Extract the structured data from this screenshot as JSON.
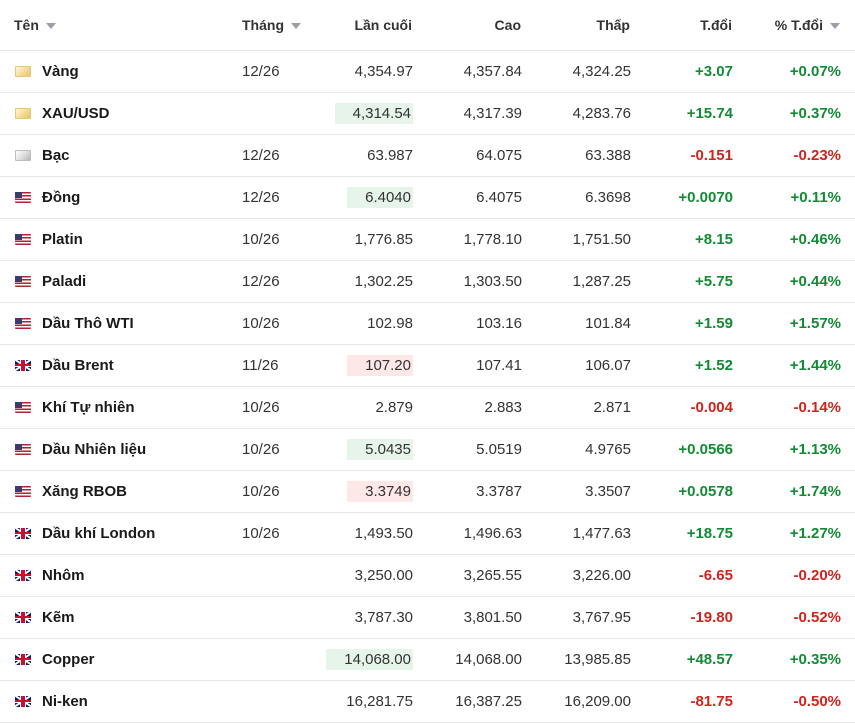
{
  "headers": {
    "name": "Tên",
    "month": "Tháng",
    "last": "Lần cuối",
    "high": "Cao",
    "low": "Thấp",
    "change": "T.đổi",
    "pct": "% T.đổi"
  },
  "colors": {
    "positive": "#138a36",
    "negative": "#d0231d",
    "highlight_up": "#e6f4ea",
    "highlight_down": "#fde7e7"
  },
  "rows": [
    {
      "flag": "gold-icon",
      "name": "Vàng",
      "month": "12/26",
      "last": "4,354.97",
      "high": "4,357.84",
      "low": "4,324.25",
      "change": "+3.07",
      "pct": "+0.07%",
      "dir": "up",
      "flash": ""
    },
    {
      "flag": "gold-icon",
      "name": "XAU/USD",
      "month": "",
      "last": "4,314.54",
      "high": "4,317.39",
      "low": "4,283.76",
      "change": "+15.74",
      "pct": "+0.37%",
      "dir": "up",
      "flash": "up"
    },
    {
      "flag": "silver-icon",
      "name": "Bạc",
      "month": "12/26",
      "last": "63.987",
      "high": "64.075",
      "low": "63.388",
      "change": "-0.151",
      "pct": "-0.23%",
      "dir": "down",
      "flash": ""
    },
    {
      "flag": "us-flag-icon",
      "name": "Đồng",
      "month": "12/26",
      "last": "6.4040",
      "high": "6.4075",
      "low": "6.3698",
      "change": "+0.0070",
      "pct": "+0.11%",
      "dir": "up",
      "flash": "up"
    },
    {
      "flag": "us-flag-icon",
      "name": "Platin",
      "month": "10/26",
      "last": "1,776.85",
      "high": "1,778.10",
      "low": "1,751.50",
      "change": "+8.15",
      "pct": "+0.46%",
      "dir": "up",
      "flash": ""
    },
    {
      "flag": "us-flag-icon",
      "name": "Paladi",
      "month": "12/26",
      "last": "1,302.25",
      "high": "1,303.50",
      "low": "1,287.25",
      "change": "+5.75",
      "pct": "+0.44%",
      "dir": "up",
      "flash": ""
    },
    {
      "flag": "us-flag-icon",
      "name": "Dầu Thô WTI",
      "month": "10/26",
      "last": "102.98",
      "high": "103.16",
      "low": "101.84",
      "change": "+1.59",
      "pct": "+1.57%",
      "dir": "up",
      "flash": ""
    },
    {
      "flag": "uk-flag-icon",
      "name": "Dầu Brent",
      "month": "11/26",
      "last": "107.20",
      "high": "107.41",
      "low": "106.07",
      "change": "+1.52",
      "pct": "+1.44%",
      "dir": "up",
      "flash": "down"
    },
    {
      "flag": "us-flag-icon",
      "name": "Khí Tự nhiên",
      "month": "10/26",
      "last": "2.879",
      "high": "2.883",
      "low": "2.871",
      "change": "-0.004",
      "pct": "-0.14%",
      "dir": "down",
      "flash": ""
    },
    {
      "flag": "us-flag-icon",
      "name": "Dầu Nhiên liệu",
      "month": "10/26",
      "last": "5.0435",
      "high": "5.0519",
      "low": "4.9765",
      "change": "+0.0566",
      "pct": "+1.13%",
      "dir": "up",
      "flash": "up"
    },
    {
      "flag": "us-flag-icon",
      "name": "Xăng RBOB",
      "month": "10/26",
      "last": "3.3749",
      "high": "3.3787",
      "low": "3.3507",
      "change": "+0.0578",
      "pct": "+1.74%",
      "dir": "up",
      "flash": "down"
    },
    {
      "flag": "uk-flag-icon",
      "name": "Dầu khí London",
      "month": "10/26",
      "last": "1,493.50",
      "high": "1,496.63",
      "low": "1,477.63",
      "change": "+18.75",
      "pct": "+1.27%",
      "dir": "up",
      "flash": ""
    },
    {
      "flag": "uk-flag-icon",
      "name": "Nhôm",
      "month": "",
      "last": "3,250.00",
      "high": "3,265.55",
      "low": "3,226.00",
      "change": "-6.65",
      "pct": "-0.20%",
      "dir": "down",
      "flash": ""
    },
    {
      "flag": "uk-flag-icon",
      "name": "Kẽm",
      "month": "",
      "last": "3,787.30",
      "high": "3,801.50",
      "low": "3,767.95",
      "change": "-19.80",
      "pct": "-0.52%",
      "dir": "down",
      "flash": ""
    },
    {
      "flag": "uk-flag-icon",
      "name": "Copper",
      "month": "",
      "last": "14,068.00",
      "high": "14,068.00",
      "low": "13,985.85",
      "change": "+48.57",
      "pct": "+0.35%",
      "dir": "up",
      "flash": "up"
    },
    {
      "flag": "uk-flag-icon",
      "name": "Ni-ken",
      "month": "",
      "last": "16,281.75",
      "high": "16,387.25",
      "low": "16,209.00",
      "change": "-81.75",
      "pct": "-0.50%",
      "dir": "down",
      "flash": ""
    }
  ]
}
